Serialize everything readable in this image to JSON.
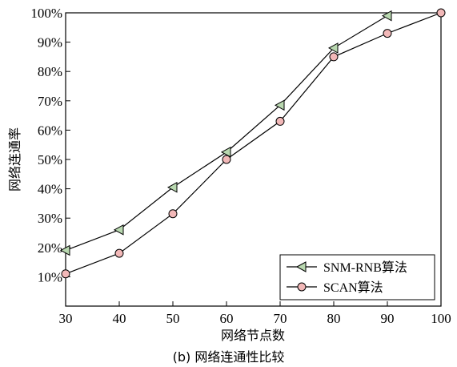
{
  "caption": "(b) 网络连通性比较",
  "chart_data": {
    "type": "line",
    "title": "",
    "xlabel": "网络节点数",
    "ylabel": "网络连通率",
    "xlim": [
      30,
      100
    ],
    "ylim": [
      0,
      100
    ],
    "x_ticks": [
      30,
      40,
      50,
      60,
      70,
      80,
      90,
      100
    ],
    "y_ticks": [
      10,
      20,
      30,
      40,
      50,
      60,
      70,
      80,
      90,
      100
    ],
    "y_tick_suffix": "%",
    "grid": false,
    "legend_position": "bottom-right",
    "series": [
      {
        "name": "SNM-RNB算法",
        "marker": "triangle-left",
        "marker_fill": "#b9d8b0",
        "line_color": "#000000",
        "x": [
          30,
          40,
          50,
          60,
          70,
          80,
          90
        ],
        "y": [
          19,
          26,
          40.5,
          52.5,
          68.5,
          88,
          99
        ]
      },
      {
        "name": "SCAN算法",
        "marker": "circle",
        "marker_fill": "#f2b8b8",
        "line_color": "#000000",
        "x": [
          30,
          40,
          50,
          60,
          70,
          80,
          90,
          100
        ],
        "y": [
          11,
          18,
          31.5,
          50,
          63,
          85,
          93,
          100
        ]
      }
    ]
  }
}
